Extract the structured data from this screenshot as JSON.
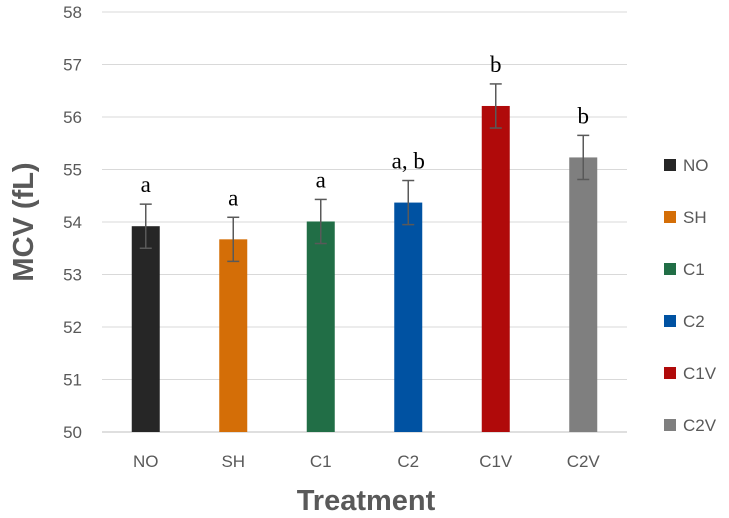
{
  "chart_data": {
    "type": "bar",
    "title": "",
    "xlabel": "Treatment",
    "ylabel": "MCV (fL)",
    "ylim": [
      50,
      58
    ],
    "yticks": [
      50,
      51,
      52,
      53,
      54,
      55,
      56,
      57,
      58
    ],
    "grid": true,
    "legend_position": "right",
    "categories": [
      "NO",
      "SH",
      "C1",
      "C2",
      "C1V",
      "C2V"
    ],
    "values": [
      53.92,
      53.67,
      54.01,
      54.37,
      56.21,
      55.23
    ],
    "errors": [
      0.42,
      0.42,
      0.42,
      0.42,
      0.42,
      0.42
    ],
    "significance": [
      "a",
      "a",
      "a",
      "a, b",
      "b",
      "b"
    ],
    "colors": [
      "#262626",
      "#D46E07",
      "#216E46",
      "#0052A2",
      "#B00A0A",
      "#7F7F7F"
    ]
  }
}
